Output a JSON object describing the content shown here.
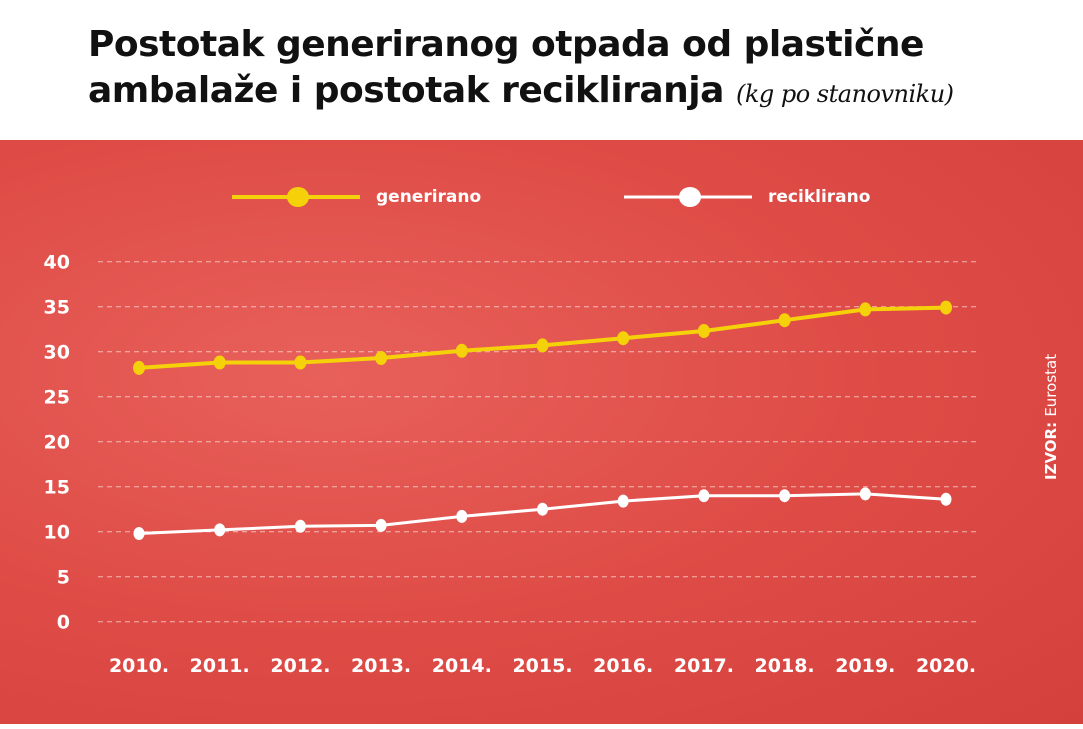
{
  "chart_data": {
    "type": "line",
    "title": "Postotak generiranog otpada od plastične ambalaže i postotak recikliranja",
    "subtitle": "(kg po stanovniku)",
    "source_label": "IZVOR:",
    "source": "Eurostat",
    "categories": [
      "2010.",
      "2011.",
      "2012.",
      "2013.",
      "2014.",
      "2015.",
      "2016.",
      "2017.",
      "2018.",
      "2019.",
      "2020."
    ],
    "yticks": [
      "0",
      "5",
      "10",
      "15",
      "20",
      "25",
      "30",
      "35",
      "40"
    ],
    "ylim": [
      0,
      40
    ],
    "grid": true,
    "legend_position": "top",
    "series": [
      {
        "name": "generirano",
        "color": "#f5d10a",
        "values": [
          28.2,
          28.8,
          28.8,
          29.3,
          30.1,
          30.7,
          31.5,
          32.3,
          33.5,
          34.7,
          34.9
        ]
      },
      {
        "name": "reciklirano",
        "color": "#ffffff",
        "values": [
          9.8,
          10.2,
          10.6,
          10.7,
          11.7,
          12.5,
          13.4,
          14.0,
          14.0,
          14.2,
          13.6
        ]
      }
    ]
  }
}
